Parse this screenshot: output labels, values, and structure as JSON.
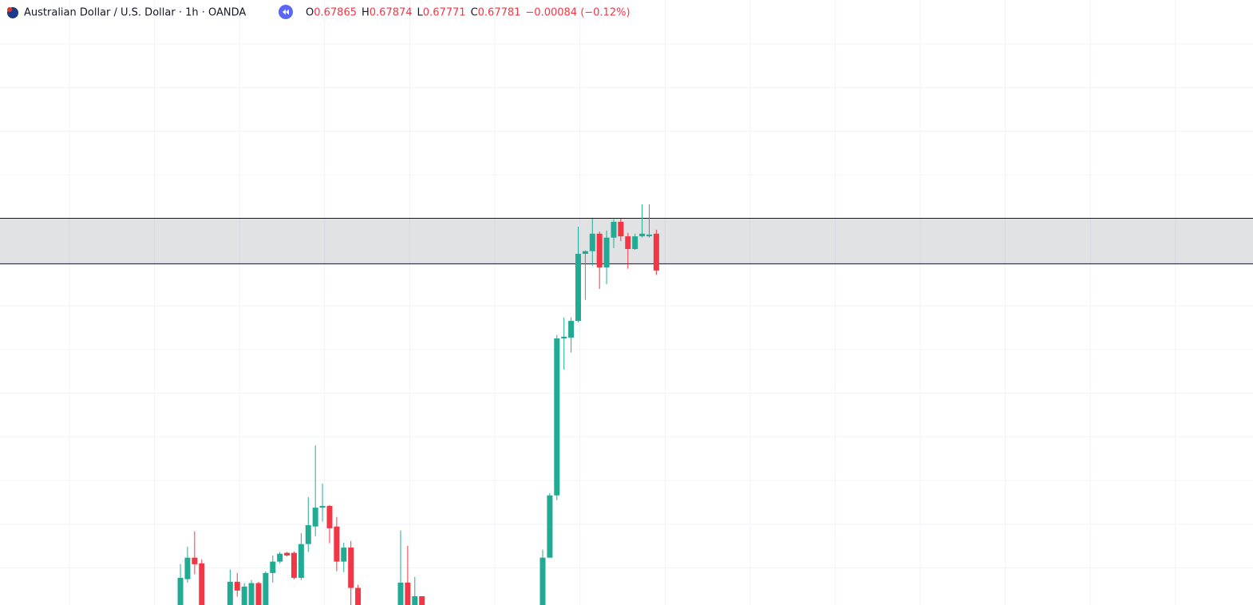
{
  "chart_data": {
    "type": "candlestick",
    "title": "Australian Dollar / U.S. Dollar · 1h · OANDA",
    "legend_labels": [
      "O",
      "H",
      "L",
      "C"
    ],
    "change": "−0.00084 (−0.12%)",
    "up_color": "#22ab94",
    "down_color": "#f23645",
    "zone": [
      0.67796,
      0.679
    ],
    "xlim": [
      -25.4,
      151
    ],
    "ylim": [
      0.67018,
      0.68398
    ],
    "x": [
      0,
      1,
      2,
      3,
      7,
      8,
      9,
      10,
      11,
      12,
      13,
      14,
      15,
      16,
      17,
      18,
      19,
      20,
      21,
      22,
      23,
      24,
      25,
      31,
      32,
      33,
      34,
      51,
      52,
      53,
      54,
      55,
      56,
      57,
      58,
      59,
      60,
      61,
      62,
      63,
      64,
      65,
      66,
      67
    ],
    "open": [
      0.67018,
      0.67077,
      0.67126,
      0.67113,
      0.67018,
      0.67071,
      0.67018,
      0.67018,
      0.67068,
      0.67018,
      0.67091,
      0.67117,
      0.67137,
      0.67137,
      0.6708,
      0.67157,
      0.67197,
      0.6724,
      0.67244,
      0.67197,
      0.67117,
      0.67149,
      0.67057,
      0.67018,
      0.67069,
      0.67018,
      0.67038,
      0.67018,
      0.67126,
      0.67268,
      0.67626,
      0.67628,
      0.67666,
      0.67819,
      0.67825,
      0.67865,
      0.67788,
      0.67856,
      0.67892,
      0.67859,
      0.6783,
      0.67859,
      0.67859,
      0.67865
    ],
    "high": [
      0.67111,
      0.67151,
      0.67186,
      0.67122,
      0.67099,
      0.67091,
      0.67068,
      0.67075,
      0.67071,
      0.67095,
      0.67131,
      0.67139,
      0.67139,
      0.6714,
      0.67182,
      0.67264,
      0.67382,
      0.67295,
      0.67246,
      0.67219,
      0.6716,
      0.67164,
      0.67064,
      0.67188,
      0.67153,
      0.67082,
      0.67038,
      0.67144,
      0.67273,
      0.67634,
      0.67674,
      0.67674,
      0.67881,
      0.67827,
      0.67899,
      0.6787,
      0.67872,
      0.67898,
      0.67899,
      0.67867,
      0.67865,
      0.67932,
      0.67932,
      0.67874
    ],
    "low": [
      0.67015,
      0.67069,
      0.67088,
      0.67015,
      0.67015,
      0.67037,
      0.67015,
      0.67015,
      0.67015,
      0.67015,
      0.67069,
      0.67113,
      0.67129,
      0.67077,
      0.67075,
      0.67139,
      0.67175,
      0.67208,
      0.67159,
      0.67095,
      0.67093,
      0.67018,
      0.67015,
      0.67015,
      0.67015,
      0.67015,
      0.67015,
      0.67015,
      0.67126,
      0.67257,
      0.67555,
      0.67594,
      0.67663,
      0.67714,
      0.67792,
      0.67739,
      0.6775,
      0.67832,
      0.67848,
      0.67785,
      0.67828,
      0.67856,
      0.67856,
      0.67771
    ],
    "close": [
      0.6708,
      0.67126,
      0.67111,
      0.67018,
      0.67071,
      0.67051,
      0.6706,
      0.67068,
      0.67018,
      0.67091,
      0.67117,
      0.67135,
      0.67131,
      0.6708,
      0.67157,
      0.672,
      0.6724,
      0.67244,
      0.67193,
      0.67117,
      0.67149,
      0.67057,
      0.67018,
      0.67069,
      0.67018,
      0.67038,
      0.67018,
      0.67126,
      0.67268,
      0.67626,
      0.6763,
      0.67666,
      0.67819,
      0.67825,
      0.67865,
      0.67788,
      0.67856,
      0.67892,
      0.67859,
      0.6783,
      0.67859,
      0.67865,
      0.67863,
      0.67781
    ]
  }
}
